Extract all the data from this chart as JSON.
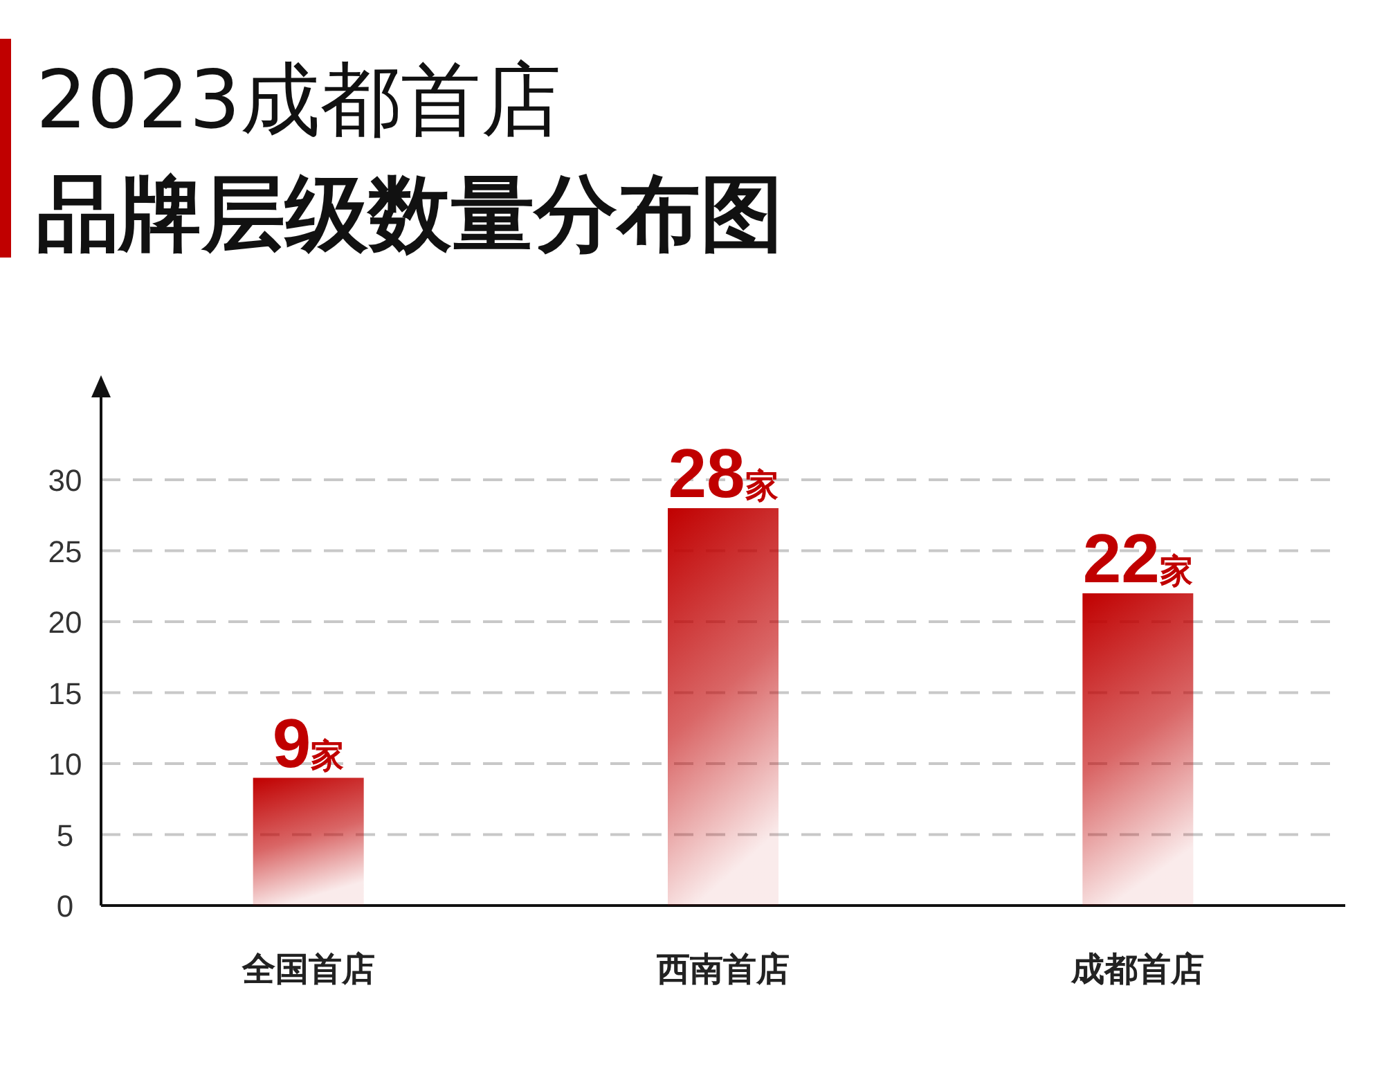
{
  "chart_data": {
    "type": "bar",
    "title": "2023成都首店",
    "subtitle": "品牌层级数量分布图",
    "categories": [
      "全国首店",
      "西南首店",
      "成都首店"
    ],
    "values": [
      9,
      28,
      22
    ],
    "value_labels": [
      "9家",
      "28家",
      "22家"
    ],
    "color": "#c00000",
    "ylim": [
      0,
      36
    ],
    "yticks": [
      0,
      5,
      10,
      15,
      20,
      25,
      30
    ],
    "grid": "y"
  }
}
